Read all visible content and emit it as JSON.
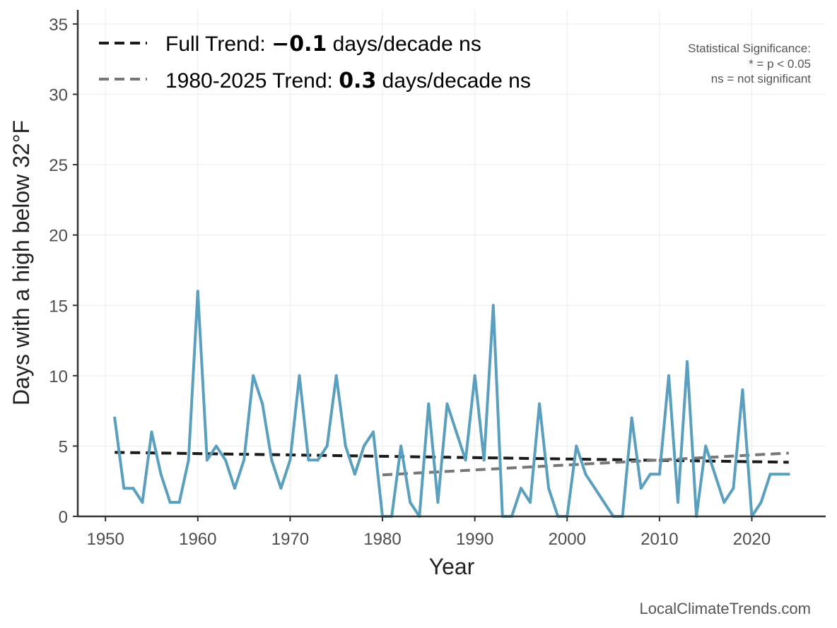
{
  "chart_data": {
    "type": "line",
    "xlabel": "Year",
    "ylabel": "Days with a high below 32°F",
    "xlim": [
      1947,
      2028
    ],
    "ylim": [
      0,
      36
    ],
    "x_ticks": [
      1950,
      1960,
      1970,
      1980,
      1990,
      2000,
      2010,
      2020
    ],
    "y_ticks": [
      0,
      5,
      10,
      15,
      20,
      25,
      30,
      35
    ],
    "grid": true,
    "legend_position": "top-left",
    "series": [
      {
        "color": "#5a9fbd",
        "x": [
          1951,
          1952,
          1953,
          1954,
          1955,
          1956,
          1957,
          1958,
          1959,
          1960,
          1961,
          1962,
          1963,
          1964,
          1965,
          1966,
          1967,
          1968,
          1969,
          1970,
          1971,
          1972,
          1973,
          1974,
          1975,
          1976,
          1977,
          1978,
          1979,
          1980,
          1981,
          1982,
          1983,
          1984,
          1985,
          1986,
          1987,
          1988,
          1989,
          1990,
          1991,
          1992,
          1993,
          1994,
          1995,
          1996,
          1997,
          1998,
          1999,
          2000,
          2001,
          2002,
          2003,
          2004,
          2005,
          2006,
          2007,
          2008,
          2009,
          2010,
          2011,
          2012,
          2013,
          2014,
          2015,
          2016,
          2017,
          2018,
          2019,
          2020,
          2021,
          2022,
          2023,
          2024
        ],
        "values": [
          7,
          2,
          2,
          1,
          6,
          3,
          1,
          1,
          4,
          16,
          4,
          5,
          4,
          2,
          4,
          10,
          8,
          4,
          2,
          4,
          10,
          4,
          4,
          5,
          10,
          5,
          3,
          5,
          6,
          0,
          0,
          5,
          1,
          0,
          8,
          1,
          8,
          6,
          4,
          10,
          4,
          15,
          0,
          0,
          2,
          1,
          8,
          2,
          0,
          0,
          5,
          3,
          2,
          1,
          0,
          0,
          7,
          2,
          3,
          3,
          10,
          1,
          11,
          0,
          5,
          3,
          1,
          2,
          9,
          0,
          1,
          3,
          3,
          3
        ]
      }
    ],
    "trends": [
      {
        "name": "Full Trend",
        "label_prefix": "Full Trend: ",
        "value": "−0.1",
        "label_suffix": " days/decade ns",
        "color": "#1a1a1a",
        "x": [
          1951,
          2024
        ],
        "y": [
          4.55,
          3.85
        ]
      },
      {
        "name": "1980-2025 Trend",
        "label_prefix": "1980-2025 Trend: ",
        "value": "0.3",
        "label_suffix": " days/decade ns",
        "color": "#777777",
        "x": [
          1980,
          2024
        ],
        "y": [
          2.95,
          4.5
        ]
      }
    ],
    "significance_note": [
      "Statistical Significance:",
      "* = p < 0.05",
      "ns = not significant"
    ],
    "credit": "LocalClimateTrends.com"
  }
}
